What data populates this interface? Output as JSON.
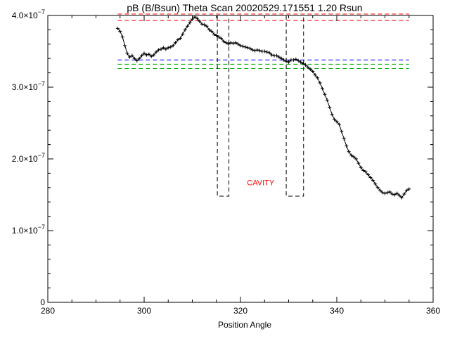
{
  "chart_data": {
    "type": "line",
    "title": "pB (B/Bsun) Theta Scan 20020529.171551 1.20 Rsun",
    "xlabel": "Position Angle",
    "ylabel": "",
    "xlim": [
      280,
      360
    ],
    "ylim": [
      0,
      4e-07
    ],
    "x_ticks": [
      {
        "value": 280,
        "label": "280"
      },
      {
        "value": 300,
        "label": "300"
      },
      {
        "value": 320,
        "label": "320"
      },
      {
        "value": 340,
        "label": "340"
      },
      {
        "value": 360,
        "label": "360"
      }
    ],
    "y_ticks": [
      {
        "value": 0,
        "label": "0",
        "exp": ""
      },
      {
        "value": 1e-07,
        "label": "1.0×10",
        "exp": "−7"
      },
      {
        "value": 2e-07,
        "label": "2.0×10",
        "exp": "−7"
      },
      {
        "value": 3e-07,
        "label": "3.0×10",
        "exp": "−7"
      },
      {
        "value": 4e-07,
        "label": "4.0×10",
        "exp": "−7"
      }
    ],
    "x_minor_step": 5,
    "y_minor_step": 2e-08,
    "series": [
      {
        "color": "#000000",
        "marker": "plus",
        "points": [
          [
            294.5,
            3.82e-07
          ],
          [
            295.0,
            3.78e-07
          ],
          [
            295.5,
            3.7e-07
          ],
          [
            296.0,
            3.58e-07
          ],
          [
            296.5,
            3.47e-07
          ],
          [
            297.0,
            3.42e-07
          ],
          [
            297.5,
            3.44e-07
          ],
          [
            298.0,
            3.4e-07
          ],
          [
            298.5,
            3.37e-07
          ],
          [
            299.0,
            3.4e-07
          ],
          [
            299.5,
            3.44e-07
          ],
          [
            300.0,
            3.47e-07
          ],
          [
            300.5,
            3.45e-07
          ],
          [
            301.0,
            3.46e-07
          ],
          [
            301.5,
            3.43e-07
          ],
          [
            302.0,
            3.45e-07
          ],
          [
            302.5,
            3.49e-07
          ],
          [
            303.0,
            3.52e-07
          ],
          [
            303.5,
            3.53e-07
          ],
          [
            304.0,
            3.55e-07
          ],
          [
            304.5,
            3.53e-07
          ],
          [
            305.0,
            3.55e-07
          ],
          [
            305.5,
            3.56e-07
          ],
          [
            306.0,
            3.58e-07
          ],
          [
            306.5,
            3.62e-07
          ],
          [
            307.0,
            3.66e-07
          ],
          [
            307.5,
            3.68e-07
          ],
          [
            308.0,
            3.74e-07
          ],
          [
            308.5,
            3.8e-07
          ],
          [
            309.0,
            3.85e-07
          ],
          [
            309.5,
            3.9e-07
          ],
          [
            310.0,
            3.95e-07
          ],
          [
            310.5,
            3.98e-07
          ],
          [
            311.0,
            3.96e-07
          ],
          [
            311.5,
            3.92e-07
          ],
          [
            312.0,
            3.88e-07
          ],
          [
            312.5,
            3.87e-07
          ],
          [
            313.0,
            3.85e-07
          ],
          [
            313.5,
            3.8e-07
          ],
          [
            314.0,
            3.78e-07
          ],
          [
            314.5,
            3.74e-07
          ],
          [
            315.0,
            3.72e-07
          ],
          [
            315.5,
            3.7e-07
          ],
          [
            316.0,
            3.68e-07
          ],
          [
            316.5,
            3.64e-07
          ],
          [
            317.0,
            3.62e-07
          ],
          [
            317.5,
            3.6e-07
          ],
          [
            318.0,
            3.62e-07
          ],
          [
            318.5,
            3.61e-07
          ],
          [
            319.0,
            3.62e-07
          ],
          [
            319.5,
            3.6e-07
          ],
          [
            320.0,
            3.58e-07
          ],
          [
            320.5,
            3.57e-07
          ],
          [
            321.0,
            3.56e-07
          ],
          [
            321.5,
            3.55e-07
          ],
          [
            322.0,
            3.54e-07
          ],
          [
            322.5,
            3.52e-07
          ],
          [
            323.0,
            3.51e-07
          ],
          [
            323.5,
            3.52e-07
          ],
          [
            324.0,
            3.51e-07
          ],
          [
            324.5,
            3.5e-07
          ],
          [
            325.0,
            3.5e-07
          ],
          [
            325.5,
            3.49e-07
          ],
          [
            326.0,
            3.48e-07
          ],
          [
            326.5,
            3.45e-07
          ],
          [
            327.0,
            3.44e-07
          ],
          [
            327.5,
            3.44e-07
          ],
          [
            328.0,
            3.42e-07
          ],
          [
            328.5,
            3.4e-07
          ],
          [
            329.0,
            3.38e-07
          ],
          [
            329.5,
            3.36e-07
          ],
          [
            330.0,
            3.35e-07
          ],
          [
            330.5,
            3.38e-07
          ],
          [
            331.0,
            3.38e-07
          ],
          [
            331.5,
            3.39e-07
          ],
          [
            332.0,
            3.37e-07
          ],
          [
            332.5,
            3.35e-07
          ],
          [
            333.0,
            3.33e-07
          ],
          [
            333.5,
            3.31e-07
          ],
          [
            334.0,
            3.28e-07
          ],
          [
            334.5,
            3.25e-07
          ],
          [
            335.0,
            3.22e-07
          ],
          [
            335.5,
            3.17e-07
          ],
          [
            336.0,
            3.13e-07
          ],
          [
            336.5,
            3.06e-07
          ],
          [
            337.0,
            2.98e-07
          ],
          [
            337.5,
            2.9e-07
          ],
          [
            338.0,
            2.82e-07
          ],
          [
            338.5,
            2.72e-07
          ],
          [
            339.0,
            2.62e-07
          ],
          [
            339.5,
            2.55e-07
          ],
          [
            340.0,
            2.52e-07
          ],
          [
            340.5,
            2.48e-07
          ],
          [
            341.0,
            2.38e-07
          ],
          [
            341.5,
            2.28e-07
          ],
          [
            342.0,
            2.18e-07
          ],
          [
            342.5,
            2.1e-07
          ],
          [
            343.0,
            2.05e-07
          ],
          [
            343.5,
            2.03e-07
          ],
          [
            344.0,
            2e-07
          ],
          [
            344.5,
            1.94e-07
          ],
          [
            345.0,
            1.88e-07
          ],
          [
            345.5,
            1.84e-07
          ],
          [
            346.0,
            1.82e-07
          ],
          [
            346.5,
            1.78e-07
          ],
          [
            347.0,
            1.74e-07
          ],
          [
            347.5,
            1.7e-07
          ],
          [
            348.0,
            1.65e-07
          ],
          [
            348.5,
            1.6e-07
          ],
          [
            349.0,
            1.56e-07
          ],
          [
            349.5,
            1.53e-07
          ],
          [
            350.0,
            1.52e-07
          ],
          [
            350.5,
            1.53e-07
          ],
          [
            351.0,
            1.54e-07
          ],
          [
            351.5,
            1.51e-07
          ],
          [
            352.0,
            1.5e-07
          ],
          [
            352.5,
            1.52e-07
          ],
          [
            353.0,
            1.49e-07
          ],
          [
            353.5,
            1.46e-07
          ],
          [
            354.0,
            1.51e-07
          ],
          [
            354.5,
            1.56e-07
          ],
          [
            355.0,
            1.58e-07
          ]
        ]
      }
    ],
    "reference_lines": [
      {
        "color": "#ff0000",
        "y": 4.02e-07,
        "x_from": 294.5,
        "x_to": 355
      },
      {
        "color": "#ff0000",
        "y": 3.93e-07,
        "x_from": 294.5,
        "x_to": 355
      },
      {
        "color": "#0000ff",
        "y": 3.38e-07,
        "x_from": 294.5,
        "x_to": 355
      },
      {
        "color": "#00aa00",
        "y": 3.32e-07,
        "x_from": 294.5,
        "x_to": 355
      },
      {
        "color": "#00aa00",
        "y": 3.26e-07,
        "x_from": 294.5,
        "x_to": 355
      }
    ],
    "cavity_boxes": [
      {
        "x_from": 315.2,
        "x_to": 317.6,
        "y_bottom": 1.48e-07,
        "y_top": 4e-07
      },
      {
        "x_from": 329.5,
        "x_to": 333.1,
        "y_bottom": 1.48e-07,
        "y_top": 4e-07
      }
    ],
    "annotations": [
      {
        "text": "CAVITY",
        "x": 324.2,
        "y": 1.63e-07,
        "color": "#ff0000"
      }
    ],
    "grid": false
  }
}
